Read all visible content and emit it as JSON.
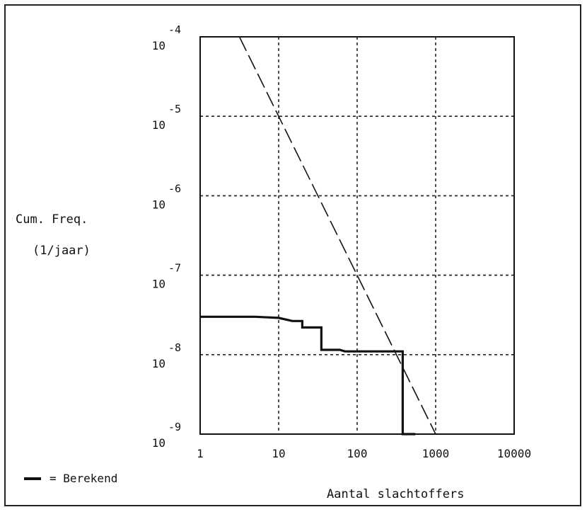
{
  "chart_data": {
    "type": "line",
    "title": "",
    "xlabel": "Aantal slachtoffers",
    "ylabel_line1": "Cum. Freq.",
    "ylabel_line2": "(1/jaar)",
    "x_scale": "log",
    "y_scale": "log",
    "xlim": [
      1,
      10000
    ],
    "ylim": [
      1e-09,
      0.0001
    ],
    "grid": true,
    "x_ticks": [
      {
        "value": 1,
        "label": "1"
      },
      {
        "value": 10,
        "label": "10"
      },
      {
        "value": 100,
        "label": "100"
      },
      {
        "value": 1000,
        "label": "1000"
      },
      {
        "value": 10000,
        "label": "10000"
      }
    ],
    "y_ticks": [
      {
        "value": 0.0001,
        "base": "10",
        "exp": "-4"
      },
      {
        "value": 1e-05,
        "base": "10",
        "exp": "-5"
      },
      {
        "value": 1e-06,
        "base": "10",
        "exp": "-6"
      },
      {
        "value": 1e-07,
        "base": "10",
        "exp": "-7"
      },
      {
        "value": 1e-08,
        "base": "10",
        "exp": "-8"
      },
      {
        "value": 1e-09,
        "base": "10",
        "exp": "-9"
      }
    ],
    "series": [
      {
        "name": "Berekend",
        "style": "solid",
        "color": "#111111",
        "points": [
          [
            1,
            3e-08
          ],
          [
            5,
            3e-08
          ],
          [
            10,
            2.9e-08
          ],
          [
            15,
            2.65e-08
          ],
          [
            20,
            2.65e-08
          ],
          [
            20,
            2.2e-08
          ],
          [
            35,
            2.2e-08
          ],
          [
            35,
            1.15e-08
          ],
          [
            60,
            1.15e-08
          ],
          [
            70,
            1.1e-08
          ],
          [
            380,
            1.1e-08
          ],
          [
            380,
            1e-09
          ],
          [
            550,
            1e-09
          ]
        ]
      },
      {
        "name": "",
        "style": "dashed",
        "color": "#111111",
        "points": [
          [
            3.16,
            0.0001
          ],
          [
            1000,
            1e-09
          ]
        ]
      }
    ],
    "legend": {
      "position": "bottom-left",
      "text": "= Berekend"
    }
  }
}
